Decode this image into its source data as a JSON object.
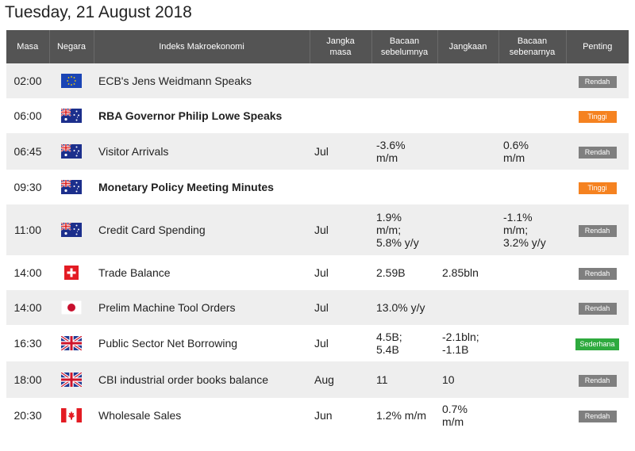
{
  "page": {
    "date_title": "Tuesday, 21 August 2018"
  },
  "colors": {
    "header_bg": "#545454",
    "row_alt": "#eeeeee",
    "low": "#7f7f7f",
    "high": "#f58220",
    "medium": "#2eaa3e"
  },
  "table": {
    "headers": {
      "time": "Masa",
      "country": "Negara",
      "indicator": "Indeks Makroekonomi",
      "period": [
        "Jangka",
        "masa"
      ],
      "previous": [
        "Bacaan",
        "sebelumnya"
      ],
      "forecast": "Jangkaan",
      "actual": [
        "Bacaan",
        "sebenarnya"
      ],
      "importance": "Penting"
    },
    "rows": [
      {
        "time": "02:00",
        "flag": "eu-flag-icon",
        "event": "ECB's Jens Weidmann Speaks",
        "bold": false,
        "period": "",
        "previous": [],
        "forecast": [],
        "actual": [],
        "importance": "Rendah",
        "level": "low"
      },
      {
        "time": "06:00",
        "flag": "au-flag-icon",
        "event": "RBA Governor Philip Lowe Speaks",
        "bold": true,
        "period": "",
        "previous": [],
        "forecast": [],
        "actual": [],
        "importance": "Tinggi",
        "level": "high"
      },
      {
        "time": "06:45",
        "flag": "au-flag-icon",
        "event": "Visitor Arrivals",
        "bold": false,
        "period": "Jul",
        "previous": [
          "-3.6%",
          "m/m"
        ],
        "forecast": [],
        "actual": [
          "0.6%",
          "m/m"
        ],
        "importance": "Rendah",
        "level": "low"
      },
      {
        "time": "09:30",
        "flag": "au-flag-icon",
        "event": "Monetary Policy Meeting Minutes",
        "bold": true,
        "period": "",
        "previous": [],
        "forecast": [],
        "actual": [],
        "importance": "Tinggi",
        "level": "high"
      },
      {
        "time": "11:00",
        "flag": "au-flag-icon",
        "event": "Credit Card Spending",
        "bold": false,
        "period": "Jul",
        "previous": [
          "1.9%",
          "m/m;",
          "5.8% y/y"
        ],
        "forecast": [],
        "actual": [
          "-1.1%",
          "m/m;",
          "3.2% y/y"
        ],
        "importance": "Rendah",
        "level": "low"
      },
      {
        "time": "14:00",
        "flag": "ch-flag-icon",
        "event": "Trade Balance",
        "bold": false,
        "period": "Jul",
        "previous": [
          "2.59B"
        ],
        "forecast": [
          "2.85bln"
        ],
        "actual": [],
        "importance": "Rendah",
        "level": "low"
      },
      {
        "time": "14:00",
        "flag": "jp-flag-icon",
        "event": "Prelim Machine Tool Orders",
        "bold": false,
        "period": "Jul",
        "previous": [
          "13.0% y/y"
        ],
        "forecast": [],
        "actual": [],
        "importance": "Rendah",
        "level": "low"
      },
      {
        "time": "16:30",
        "flag": "uk-flag-icon",
        "event": "Public Sector Net Borrowing",
        "bold": false,
        "period": "Jul",
        "previous": [
          "4.5B;",
          "5.4B"
        ],
        "forecast": [
          "-2.1bln;",
          "-1.1B"
        ],
        "actual": [],
        "importance": "Sederhana",
        "level": "med"
      },
      {
        "time": "18:00",
        "flag": "uk-flag-icon",
        "event": "CBI industrial order books balance",
        "bold": false,
        "period": "Aug",
        "previous": [
          "11"
        ],
        "forecast": [
          "10"
        ],
        "actual": [],
        "importance": "Rendah",
        "level": "low"
      },
      {
        "time": "20:30",
        "flag": "ca-flag-icon",
        "event": "Wholesale Sales",
        "bold": false,
        "period": "Jun",
        "previous": [
          "1.2% m/m"
        ],
        "forecast": [
          "0.7%",
          "m/m"
        ],
        "actual": [],
        "importance": "Rendah",
        "level": "low"
      }
    ]
  }
}
